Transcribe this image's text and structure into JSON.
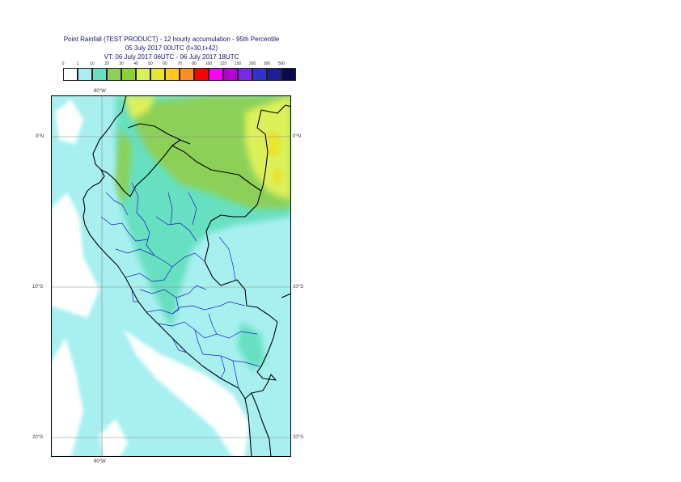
{
  "title": {
    "line1": "Point Rainfall (TEST PRODUCT) - 12 hourly accumulation - 95th Percentile",
    "line2": "05 July 2017 00UTC (t+30,t+42)",
    "line3": "VT: 06 July 2017 06UTC - 06 July 2017 18UTC"
  },
  "legend": {
    "thresholds": [
      "0",
      "1",
      "10",
      "20",
      "30",
      "40",
      "50",
      "60",
      "70",
      "80",
      "100",
      "125",
      "150",
      "200",
      "300",
      "500"
    ],
    "colors": [
      "#ffffff",
      "#a8f0f0",
      "#66e0c0",
      "#8cd058",
      "#8ad232",
      "#dcf05a",
      "#e6e632",
      "#ffc81e",
      "#ff8c1e",
      "#ff0000",
      "#ff00ff",
      "#b400d2",
      "#7828e6",
      "#3232c8",
      "#1e1e96",
      "#0a0a50"
    ]
  },
  "map": {
    "lon_labels": {
      "top": "80°W",
      "bottom": "80°W"
    },
    "lat_labels": [
      {
        "left": "0°N",
        "right": "0°N"
      },
      {
        "left": "10°S",
        "right": "10°S"
      },
      {
        "left": "20°S",
        "right": "20°S"
      }
    ]
  }
}
